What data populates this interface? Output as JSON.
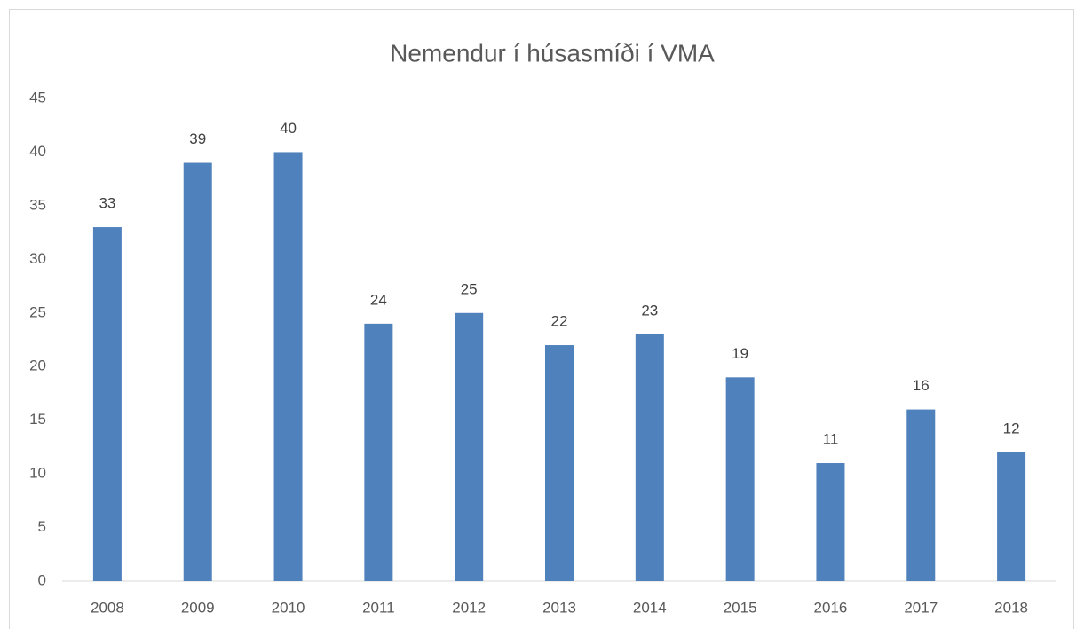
{
  "chart_data": {
    "type": "bar",
    "title": "Nemendur í húsasmíði í VMA",
    "categories": [
      "2008",
      "2009",
      "2010",
      "2011",
      "2012",
      "2013",
      "2014",
      "2015",
      "2016",
      "2017",
      "2018"
    ],
    "values": [
      33,
      39,
      40,
      24,
      25,
      22,
      23,
      19,
      11,
      16,
      12
    ],
    "color": "#4f81bd",
    "ylim": [
      0,
      45
    ],
    "yticks": [
      0,
      5,
      10,
      15,
      20,
      25,
      30,
      35,
      40,
      45
    ],
    "grid": false,
    "data_labels": true
  }
}
